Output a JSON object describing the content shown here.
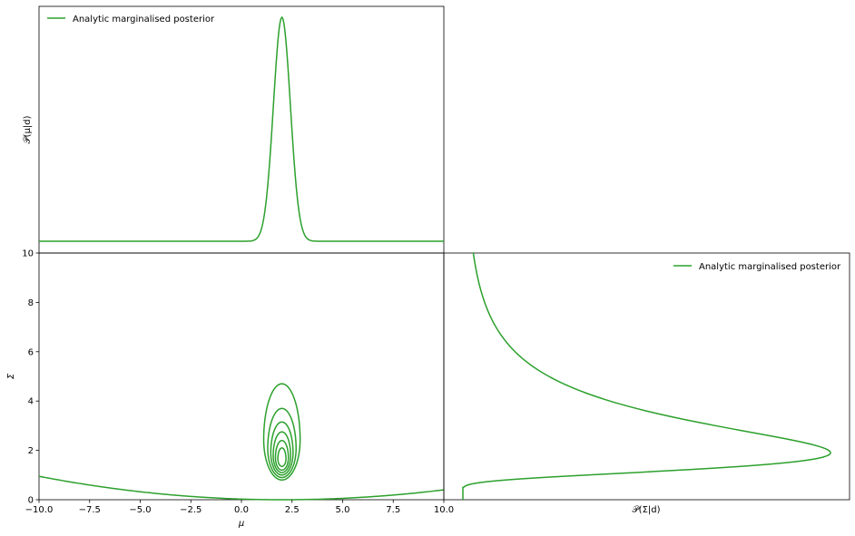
{
  "chart_data": [
    {
      "panel": "top-left",
      "type": "line",
      "xlim": [
        -10,
        10
      ],
      "ylabel": "𝒫(μ|d)",
      "legend": {
        "label": "Analytic marginalised posterior",
        "placement": "upper-left"
      },
      "color": "#2ca02c",
      "series": [
        {
          "name": "Analytic marginalised posterior",
          "x": [
            -10,
            -3,
            -1,
            0,
            0.5,
            1,
            1.25,
            1.5,
            1.75,
            2,
            2.25,
            2.5,
            2.75,
            3,
            3.5,
            4,
            5,
            10
          ],
          "y": [
            0.0,
            0.0,
            0.002,
            0.015,
            0.05,
            0.18,
            0.33,
            0.6,
            0.88,
            1.0,
            0.88,
            0.6,
            0.33,
            0.18,
            0.05,
            0.015,
            0.002,
            0.0
          ]
        }
      ]
    },
    {
      "panel": "bottom-left",
      "type": "contour",
      "xlabel": "μ",
      "ylabel": "Σ",
      "xlim": [
        -10,
        10
      ],
      "ylim": [
        0,
        10
      ],
      "xticks": [
        "−10.0",
        "−7.5",
        "−5.0",
        "−2.5",
        "0.0",
        "2.5",
        "5.0",
        "7.5",
        "10.0"
      ],
      "yticks": [
        "0",
        "2",
        "4",
        "6",
        "8",
        "10"
      ],
      "color": "#2ca02c",
      "contours": [
        {
          "center": [
            2.0,
            2.75
          ],
          "half_width": 0.9,
          "top": 4.7,
          "bottom": 0.8
        },
        {
          "center": [
            2.0,
            2.55
          ],
          "half_width": 0.7,
          "top": 3.7,
          "bottom": 0.9
        },
        {
          "center": [
            2.0,
            2.35
          ],
          "half_width": 0.55,
          "top": 3.15,
          "bottom": 1.0
        },
        {
          "center": [
            2.0,
            2.2
          ],
          "half_width": 0.43,
          "top": 2.75,
          "bottom": 1.1
        },
        {
          "center": [
            2.0,
            2.05
          ],
          "half_width": 0.32,
          "top": 2.4,
          "bottom": 1.2
        },
        {
          "center": [
            2.0,
            1.9
          ],
          "half_width": 0.2,
          "top": 2.1,
          "bottom": 1.35
        }
      ],
      "outer_curve": {
        "x": [
          -10,
          -7.5,
          -5,
          -2.5,
          0,
          2,
          4,
          6,
          8,
          10
        ],
        "y": [
          0.95,
          0.6,
          0.35,
          0.15,
          0.04,
          0.0,
          0.03,
          0.1,
          0.22,
          0.4
        ]
      }
    },
    {
      "panel": "bottom-right",
      "type": "line",
      "orientation": "horizontal",
      "xlabel": "𝒫(Σ|d)",
      "ylim": [
        0,
        10
      ],
      "legend": {
        "label": "Analytic marginalised posterior",
        "placement": "upper-right"
      },
      "color": "#2ca02c",
      "series": [
        {
          "name": "Analytic marginalised posterior",
          "sigma": [
            0.0,
            0.5,
            0.6,
            0.7,
            0.8,
            0.9,
            1.0,
            1.2,
            1.5,
            1.8,
            2.0,
            2.3,
            2.6,
            3.0,
            3.5,
            4.0,
            5.0,
            6.0,
            7.0,
            8.0,
            9.0,
            10.0
          ],
          "p": [
            0.0,
            0.0,
            0.01,
            0.07,
            0.2,
            0.35,
            0.5,
            0.73,
            0.92,
            1.0,
            0.99,
            0.9,
            0.76,
            0.6,
            0.45,
            0.34,
            0.2,
            0.12,
            0.07,
            0.04,
            0.02,
            0.005
          ]
        }
      ]
    }
  ]
}
